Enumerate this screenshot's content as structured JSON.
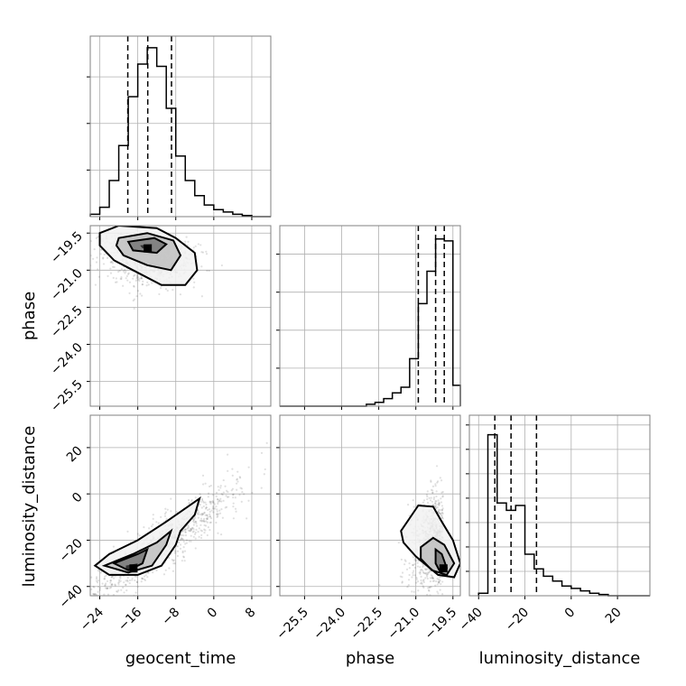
{
  "chart_data": {
    "type": "corner",
    "parameters": [
      "geocent_time",
      "phase",
      "luminosity_distance"
    ],
    "grid": true,
    "axes": {
      "geocent_time": {
        "range": [
          -26,
          12
        ],
        "ticks": [
          -24,
          -16,
          -8,
          0,
          8
        ]
      },
      "phase": {
        "range": [
          -26.5,
          -19.2
        ],
        "ticks": [
          -25.5,
          -24.0,
          -22.5,
          -21.0,
          -19.5
        ]
      },
      "luminosity_distance": {
        "range": [
          -44,
          34
        ],
        "ticks": [
          -40,
          -20,
          0,
          20
        ]
      }
    },
    "tick_labels": {
      "geocent_time": [
        "−24",
        "−16",
        "−8",
        "0",
        "8"
      ],
      "phase": [
        "−25.5",
        "−24.0",
        "−22.5",
        "−21.0",
        "−19.5"
      ],
      "luminosity_distance": [
        "−40",
        "−20",
        "0",
        "20"
      ],
      "luminosity_distance_y": [
        "−40",
        "−20",
        "0",
        "20"
      ],
      "phase_y": [
        "−19.5",
        "−21.0",
        "−22.5",
        "−24.0",
        "−25.5"
      ]
    },
    "histograms": [
      {
        "parameter": "geocent_time",
        "bins": [
          -26,
          -24,
          -22,
          -20,
          -18,
          -16,
          -14,
          -12,
          -10,
          -8,
          -6,
          -4,
          -2,
          0,
          2,
          4,
          6,
          8,
          10,
          12
        ],
        "counts": [
          2,
          8,
          31,
          61,
          103,
          131,
          145,
          129,
          93,
          52,
          31,
          18,
          10,
          6,
          4,
          2,
          1,
          0,
          0
        ],
        "ymax": 155,
        "y_ticks": [
          40,
          80,
          120
        ],
        "quantiles": [
          -18.1,
          -13.9,
          -8.9
        ]
      },
      {
        "parameter": "phase",
        "bins": [
          -26.5,
          -26.15,
          -25.8,
          -25.45,
          -25.1,
          -24.75,
          -24.4,
          -24.05,
          -23.7,
          -23.35,
          -23.0,
          -22.65,
          -22.3,
          -21.95,
          -21.6,
          -21.25,
          -20.9,
          -20.55,
          -20.2,
          -19.85,
          -19.5,
          -19.2
        ],
        "counts": [
          0,
          0,
          0,
          0,
          0,
          0,
          0,
          0,
          0,
          0,
          1,
          2,
          4,
          7,
          10,
          25,
          54,
          71,
          88,
          87,
          11
        ],
        "ymax": 95,
        "y_ticks": [
          20,
          40,
          60,
          80
        ],
        "quantiles": [
          -20.9,
          -20.2,
          -19.85
        ]
      },
      {
        "parameter": "luminosity_distance",
        "bins": [
          -40,
          -36,
          -32,
          -28,
          -24,
          -20,
          -16,
          -12,
          -8,
          -4,
          0,
          4,
          8,
          12,
          16,
          20,
          24,
          28,
          32,
          34
        ],
        "counts": [
          1,
          66,
          38,
          35,
          37,
          17,
          11,
          8,
          6,
          4,
          3,
          2,
          1,
          0.5,
          0,
          0,
          0,
          0,
          0
        ],
        "ymax": 74,
        "y_ticks": [
          10,
          20,
          30,
          40,
          50,
          60,
          70
        ],
        "quantiles": [
          -33,
          -26,
          -15
        ]
      }
    ],
    "scatter_panels": [
      {
        "x": "geocent_time",
        "y": "phase",
        "peak": [
          -14,
          -20.1
        ],
        "contours": [
          [
            [
              -24,
              -19.5
            ],
            [
              -20,
              -19.2
            ],
            [
              -12,
              -19.3
            ],
            [
              -8,
              -19.7
            ],
            [
              -4,
              -20.3
            ],
            [
              -3.5,
              -21.0
            ],
            [
              -6,
              -21.6
            ],
            [
              -11,
              -21.6
            ],
            [
              -16,
              -21.1
            ],
            [
              -21,
              -20.6
            ],
            [
              -24,
              -20.0
            ]
          ],
          [
            [
              -20,
              -19.7
            ],
            [
              -14,
              -19.5
            ],
            [
              -8.5,
              -19.8
            ],
            [
              -7,
              -20.4
            ],
            [
              -9,
              -21.0
            ],
            [
              -14,
              -20.8
            ],
            [
              -19,
              -20.4
            ],
            [
              -20.5,
              -20.0
            ]
          ],
          [
            [
              -18,
              -19.85
            ],
            [
              -12.5,
              -19.7
            ],
            [
              -10,
              -19.95
            ],
            [
              -12,
              -20.3
            ],
            [
              -17,
              -20.2
            ]
          ],
          [
            [
              -15.5,
              -20.0
            ],
            [
              -13,
              -19.95
            ],
            [
              -13.5,
              -20.1
            ],
            [
              -15,
              -20.12
            ]
          ]
        ]
      },
      {
        "x": "geocent_time",
        "y": "luminosity_distance",
        "peak": [
          -17,
          -32
        ],
        "contours": [
          [
            [
              -25,
              -31
            ],
            [
              -22,
              -26
            ],
            [
              -16,
              -20
            ],
            [
              -10,
              -12
            ],
            [
              -3,
              -2
            ],
            [
              -4,
              -9
            ],
            [
              -7,
              -16
            ],
            [
              -8,
              -22
            ],
            [
              -11,
              -31
            ],
            [
              -16,
              -35
            ],
            [
              -22,
              -35
            ]
          ],
          [
            [
              -23,
              -31
            ],
            [
              -17,
              -26
            ],
            [
              -12,
              -21
            ],
            [
              -9,
              -16
            ],
            [
              -10,
              -22
            ],
            [
              -13,
              -31
            ],
            [
              -18,
              -34
            ]
          ],
          [
            [
              -21,
              -30
            ],
            [
              -16,
              -26
            ],
            [
              -14,
              -24
            ],
            [
              -15,
              -30
            ],
            [
              -18,
              -33
            ]
          ],
          [
            [
              -18.5,
              -31
            ],
            [
              -16,
              -30
            ],
            [
              -16.5,
              -32.5
            ],
            [
              -18.5,
              -32.5
            ]
          ]
        ]
      },
      {
        "x": "phase",
        "y": "luminosity_distance",
        "peak": [
          -19.9,
          -32
        ],
        "contours": [
          [
            [
              -21.6,
              -16
            ],
            [
              -20.9,
              -5
            ],
            [
              -20.3,
              -5.5
            ],
            [
              -19.95,
              -12
            ],
            [
              -19.5,
              -20
            ],
            [
              -19.2,
              -30
            ],
            [
              -19.45,
              -36
            ],
            [
              -20.1,
              -35
            ],
            [
              -21.0,
              -27
            ],
            [
              -21.5,
              -21
            ]
          ],
          [
            [
              -20.8,
              -23
            ],
            [
              -20.3,
              -19
            ],
            [
              -19.85,
              -22
            ],
            [
              -19.45,
              -30
            ],
            [
              -19.75,
              -35
            ],
            [
              -20.35,
              -33
            ],
            [
              -20.8,
              -28
            ]
          ],
          [
            [
              -20.2,
              -24
            ],
            [
              -19.95,
              -26
            ],
            [
              -19.75,
              -32
            ],
            [
              -20.0,
              -34
            ],
            [
              -20.2,
              -30
            ]
          ],
          [
            [
              -20.0,
              -30.5
            ],
            [
              -19.8,
              -31
            ],
            [
              -19.85,
              -33
            ],
            [
              -20.0,
              -33
            ]
          ]
        ]
      }
    ]
  },
  "labels": {
    "x_geocent_time": "geocent_time",
    "x_phase": "phase",
    "x_luminosity_distance": "luminosity_distance",
    "y_phase": "phase",
    "y_luminosity_distance": "luminosity_distance"
  }
}
